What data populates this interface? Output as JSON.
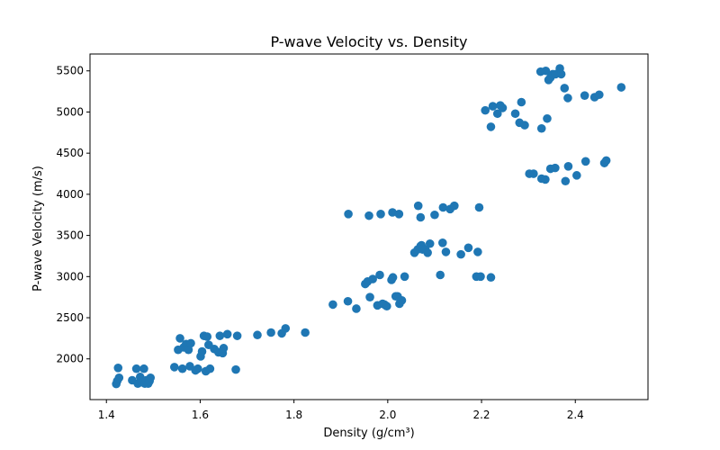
{
  "chart_data": {
    "type": "scatter",
    "title": "P-wave Velocity vs. Density",
    "xlabel": "Density (g/cm³)",
    "ylabel": "P-wave Velocity (m/s)",
    "xlim": [
      1.365,
      2.555
    ],
    "ylim": [
      1505,
      5705
    ],
    "xticks": [
      1.4,
      1.6,
      1.8,
      2.0,
      2.2,
      2.4
    ],
    "xtick_labels": [
      "1.4",
      "1.6",
      "1.8",
      "2.0",
      "2.2",
      "2.4"
    ],
    "yticks": [
      2000,
      2500,
      3000,
      3500,
      4000,
      4500,
      5000,
      5500
    ],
    "ytick_labels": [
      "2000",
      "2500",
      "3000",
      "3500",
      "4000",
      "4500",
      "5000",
      "5500"
    ],
    "grid": false,
    "marker_color": "#1f77b4",
    "x": [
      1.421,
      1.423,
      1.425,
      1.427,
      1.455,
      1.464,
      1.467,
      1.472,
      1.475,
      1.48,
      1.482,
      1.485,
      1.489,
      1.492,
      1.494,
      1.545,
      1.553,
      1.557,
      1.562,
      1.565,
      1.57,
      1.575,
      1.578,
      1.58,
      1.59,
      1.595,
      1.601,
      1.604,
      1.608,
      1.612,
      1.615,
      1.618,
      1.621,
      1.63,
      1.639,
      1.642,
      1.648,
      1.65,
      1.658,
      1.676,
      1.679,
      1.722,
      1.751,
      1.774,
      1.782,
      1.824,
      1.883,
      1.915,
      1.933,
      1.952,
      1.957,
      1.962,
      1.968,
      1.978,
      1.983,
      1.989,
      1.993,
      1.998,
      2.008,
      2.011,
      2.017,
      2.021,
      2.025,
      2.03,
      2.036,
      2.057,
      2.064,
      2.07,
      2.072,
      2.074,
      2.08,
      2.085,
      2.09,
      2.112,
      2.117,
      2.124,
      2.156,
      2.172,
      2.189,
      2.192,
      2.198,
      2.22,
      1.916,
      1.96,
      1.985,
      2.01,
      2.024,
      2.065,
      2.07,
      2.1,
      2.118,
      2.133,
      2.142,
      2.195,
      2.208,
      2.22,
      2.224,
      2.234,
      2.24,
      2.245,
      2.272,
      2.281,
      2.285,
      2.292,
      2.328,
      2.34,
      2.384,
      2.42,
      2.441,
      2.451,
      2.498,
      2.326,
      2.337,
      2.343,
      2.347,
      2.352,
      2.358,
      2.367,
      2.37,
      2.377,
      2.302,
      2.311,
      2.328,
      2.336,
      2.347,
      2.357,
      2.379,
      2.385,
      2.403,
      2.422,
      2.462,
      2.466
    ],
    "y": [
      1695,
      1730,
      1890,
      1770,
      1740,
      1880,
      1700,
      1780,
      1720,
      1880,
      1700,
      1740,
      1700,
      1730,
      1770,
      1900,
      2110,
      2250,
      1880,
      2140,
      2180,
      2110,
      1910,
      2190,
      1860,
      1880,
      2030,
      2090,
      2280,
      1850,
      2270,
      2170,
      1880,
      2120,
      2080,
      2280,
      2070,
      2130,
      2300,
      1870,
      2280,
      2290,
      2320,
      2310,
      2370,
      2320,
      2660,
      2700,
      2610,
      2910,
      2940,
      2750,
      2970,
      2650,
      3020,
      2670,
      2660,
      2640,
      2960,
      2990,
      2760,
      2760,
      2670,
      2710,
      3000,
      3290,
      3330,
      3370,
      3380,
      3330,
      3330,
      3290,
      3400,
      3020,
      3410,
      3300,
      3270,
      3350,
      3000,
      3300,
      3000,
      2990,
      3760,
      3740,
      3760,
      3780,
      3760,
      3860,
      3720,
      3750,
      3840,
      3820,
      3860,
      3840,
      5020,
      4820,
      5070,
      4980,
      5080,
      5050,
      4980,
      4870,
      5120,
      4840,
      4800,
      4920,
      5170,
      5200,
      5180,
      5210,
      5300,
      5490,
      5500,
      5390,
      5420,
      5460,
      5460,
      5530,
      5460,
      5290,
      4250,
      4250,
      4190,
      4180,
      4310,
      4320,
      4160,
      4340,
      4230,
      4400,
      4380,
      4410
    ]
  }
}
